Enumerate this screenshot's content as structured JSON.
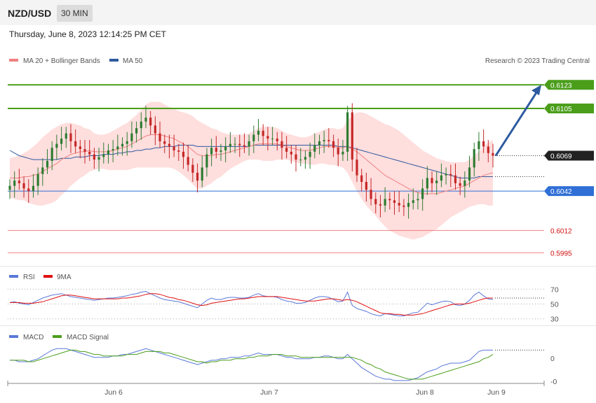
{
  "header": {
    "symbol": "NZD/USD",
    "timeframe": "30 MIN"
  },
  "timestamp": "Thursday, June 8, 2023 12:14:25 PM CET",
  "watermark": "Research © 2023 Trading Central",
  "colors": {
    "ma20": "#f08080",
    "ma50": "#2f5a9e",
    "bands": "#ffd6d6",
    "resistance": "#4a9e1a",
    "support": "#2f6fd6",
    "support_weak": "#f08080",
    "rsi": "#5a78d8",
    "rsi_ma": "#e01010",
    "macd": "#5a78d8",
    "macd_signal": "#4a9e1a",
    "bull": "#2e7d32",
    "bear": "#c62828"
  },
  "chart_data": [
    {
      "type": "candlestick",
      "title": "NZD/USD",
      "legend": [
        {
          "name": "MA 20 + Bollinger Bands"
        },
        {
          "name": "MA 50"
        }
      ],
      "ylim": [
        0.5985,
        0.6145
      ],
      "x_ticks": [
        "Jun 6",
        "Jun 7",
        "Jun 8",
        "Jun 9"
      ],
      "current_price": "0.6069",
      "levels": [
        {
          "value": 0.6123,
          "label": "0.6123",
          "kind": "resistance"
        },
        {
          "value": 0.6105,
          "label": "0.6105",
          "kind": "resistance"
        },
        {
          "value": 0.6042,
          "label": "0.6042",
          "kind": "support"
        },
        {
          "value": 0.6012,
          "label": "0.6012",
          "kind": "support_weak"
        },
        {
          "value": 0.5995,
          "label": "0.5995",
          "kind": "support_weak"
        }
      ],
      "projection": {
        "from": 0.6069,
        "to": 0.6123
      },
      "close": [
        0.6046,
        0.605,
        0.6048,
        0.6044,
        0.6042,
        0.6046,
        0.6055,
        0.606,
        0.6065,
        0.6075,
        0.6078,
        0.6082,
        0.6086,
        0.608,
        0.6076,
        0.6074,
        0.6072,
        0.607,
        0.6066,
        0.6068,
        0.607,
        0.6073,
        0.6074,
        0.6076,
        0.6078,
        0.608,
        0.6086,
        0.609,
        0.6095,
        0.6098,
        0.6092,
        0.6086,
        0.608,
        0.6078,
        0.6076,
        0.6073,
        0.6072,
        0.6068,
        0.6062,
        0.6056,
        0.605,
        0.606,
        0.607,
        0.6075,
        0.6072,
        0.6073,
        0.6076,
        0.6078,
        0.6078,
        0.6077,
        0.6076,
        0.608,
        0.6085,
        0.6088,
        0.6084,
        0.6082,
        0.6082,
        0.608,
        0.6075,
        0.6072,
        0.607,
        0.6066,
        0.6066,
        0.6068,
        0.6072,
        0.6077,
        0.608,
        0.6081,
        0.608,
        0.6075,
        0.607,
        0.6072,
        0.6102,
        0.6066,
        0.6054,
        0.6049,
        0.6043,
        0.6036,
        0.6032,
        0.6031,
        0.6036,
        0.6035,
        0.6033,
        0.6031,
        0.603,
        0.6033,
        0.6035,
        0.6036,
        0.6044,
        0.6052,
        0.6048,
        0.605,
        0.6054,
        0.6055,
        0.6054,
        0.6048,
        0.6046,
        0.605,
        0.606,
        0.6074,
        0.608,
        0.6076,
        0.6071,
        0.6069
      ],
      "ma20": [
        0.6052,
        0.6052,
        0.6052,
        0.6053,
        0.6053,
        0.6054,
        0.6055,
        0.6057,
        0.6059,
        0.6061,
        0.6063,
        0.6066,
        0.6068,
        0.607,
        0.6071,
        0.6072,
        0.6072,
        0.6073,
        0.6072,
        0.6072,
        0.6072,
        0.6072,
        0.6073,
        0.6074,
        0.6075,
        0.6076,
        0.6078,
        0.608,
        0.6082,
        0.6084,
        0.6085,
        0.6085,
        0.6085,
        0.6084,
        0.6083,
        0.6082,
        0.608,
        0.6078,
        0.6076,
        0.6073,
        0.607,
        0.6069,
        0.6069,
        0.6069,
        0.607,
        0.607,
        0.6071,
        0.6072,
        0.6073,
        0.6074,
        0.6075,
        0.6076,
        0.6077,
        0.6078,
        0.6078,
        0.6078,
        0.6078,
        0.6078,
        0.6077,
        0.6076,
        0.6075,
        0.6074,
        0.6073,
        0.6073,
        0.6073,
        0.6074,
        0.6075,
        0.6076,
        0.6076,
        0.6076,
        0.6075,
        0.6075,
        0.6076,
        0.6074,
        0.6072,
        0.6069,
        0.6066,
        0.6063,
        0.606,
        0.6057,
        0.6054,
        0.6052,
        0.605,
        0.6048,
        0.6046,
        0.6044,
        0.6042,
        0.6041,
        0.604,
        0.604,
        0.604,
        0.604,
        0.6041,
        0.6042,
        0.6043,
        0.6044,
        0.6045,
        0.6046,
        0.6048,
        0.605,
        0.6052,
        0.6054,
        0.6055,
        0.6056
      ],
      "ma50": [
        0.6073,
        0.6071,
        0.6069,
        0.6068,
        0.6067,
        0.6066,
        0.6066,
        0.6066,
        0.6066,
        0.6066,
        0.6066,
        0.6067,
        0.6067,
        0.6067,
        0.6068,
        0.6068,
        0.6068,
        0.6069,
        0.6069,
        0.6069,
        0.607,
        0.607,
        0.607,
        0.6071,
        0.6071,
        0.6072,
        0.6072,
        0.6073,
        0.6073,
        0.6074,
        0.6074,
        0.6075,
        0.6075,
        0.6076,
        0.6076,
        0.6076,
        0.6077,
        0.6077,
        0.6077,
        0.6077,
        0.6076,
        0.6076,
        0.6076,
        0.6076,
        0.6076,
        0.6076,
        0.6076,
        0.6076,
        0.6076,
        0.6076,
        0.6076,
        0.6076,
        0.6077,
        0.6077,
        0.6077,
        0.6077,
        0.6077,
        0.6077,
        0.6077,
        0.6077,
        0.6077,
        0.6077,
        0.6077,
        0.6077,
        0.6077,
        0.6077,
        0.6077,
        0.6077,
        0.6077,
        0.6077,
        0.6076,
        0.6076,
        0.6076,
        0.6075,
        0.6074,
        0.6073,
        0.6072,
        0.6071,
        0.607,
        0.6069,
        0.6068,
        0.6067,
        0.6066,
        0.6065,
        0.6064,
        0.6063,
        0.6062,
        0.6061,
        0.606,
        0.6059,
        0.6058,
        0.6057,
        0.6056,
        0.6055,
        0.6054,
        0.6053,
        0.6052,
        0.6052,
        0.6052,
        0.6052,
        0.6053,
        0.6053,
        0.6053,
        0.6053
      ],
      "band_width": [
        0.0015,
        0.0016,
        0.0017,
        0.0018,
        0.002,
        0.0022,
        0.0024,
        0.0026,
        0.0027,
        0.0028,
        0.0028,
        0.0027,
        0.0026,
        0.0024,
        0.0022,
        0.002,
        0.0018,
        0.0016,
        0.0014,
        0.0013,
        0.0013,
        0.0014,
        0.0015,
        0.0016,
        0.0017,
        0.0018,
        0.0019,
        0.002,
        0.0022,
        0.0024,
        0.0025,
        0.0025,
        0.0025,
        0.0024,
        0.0023,
        0.0023,
        0.0023,
        0.0024,
        0.0025,
        0.0026,
        0.0026,
        0.0025,
        0.0023,
        0.0021,
        0.0019,
        0.0017,
        0.0015,
        0.0013,
        0.0012,
        0.0011,
        0.001,
        0.001,
        0.0011,
        0.0012,
        0.0013,
        0.0013,
        0.0013,
        0.0012,
        0.0011,
        0.001,
        0.001,
        0.001,
        0.001,
        0.001,
        0.0011,
        0.0012,
        0.0012,
        0.0013,
        0.0014,
        0.0014,
        0.0014,
        0.0015,
        0.002,
        0.0025,
        0.003,
        0.0033,
        0.0035,
        0.0036,
        0.0037,
        0.0038,
        0.0039,
        0.004,
        0.004,
        0.004,
        0.0039,
        0.0038,
        0.0037,
        0.0035,
        0.0033,
        0.0031,
        0.0029,
        0.0027,
        0.0025,
        0.0023,
        0.0021,
        0.002,
        0.0019,
        0.0018,
        0.0018,
        0.0019,
        0.002,
        0.0022,
        0.0024,
        0.0025
      ]
    },
    {
      "type": "line",
      "legend": [
        {
          "name": "RSI"
        },
        {
          "name": "9MA"
        }
      ],
      "ylim": [
        25,
        75
      ],
      "y_ticks": [
        "70",
        "50",
        "30"
      ],
      "rsi": [
        52,
        53,
        51,
        50,
        49,
        52,
        55,
        58,
        60,
        62,
        63,
        64,
        62,
        60,
        59,
        58,
        57,
        56,
        55,
        56,
        57,
        58,
        58,
        59,
        60,
        61,
        63,
        64,
        66,
        67,
        64,
        61,
        58,
        56,
        55,
        54,
        53,
        51,
        49,
        47,
        45,
        50,
        55,
        58,
        56,
        56,
        58,
        59,
        59,
        58,
        58,
        59,
        62,
        64,
        61,
        60,
        60,
        59,
        56,
        54,
        53,
        51,
        51,
        52,
        55,
        58,
        60,
        60,
        59,
        56,
        53,
        54,
        66,
        48,
        44,
        42,
        40,
        37,
        35,
        34,
        37,
        36,
        35,
        34,
        34,
        36,
        38,
        39,
        45,
        51,
        49,
        51,
        53,
        54,
        53,
        49,
        48,
        50,
        55,
        62,
        66,
        61,
        57,
        56
      ],
      "rsi_ma": [
        52,
        52,
        52,
        51,
        51,
        51,
        52,
        53,
        55,
        57,
        59,
        61,
        62,
        62,
        61,
        60,
        59,
        58,
        57,
        57,
        57,
        57,
        57,
        57,
        58,
        58,
        59,
        60,
        61,
        63,
        64,
        64,
        63,
        61,
        59,
        58,
        56,
        55,
        53,
        51,
        49,
        48,
        49,
        51,
        52,
        53,
        54,
        55,
        56,
        57,
        57,
        58,
        59,
        60,
        60,
        60,
        60,
        60,
        59,
        58,
        57,
        56,
        55,
        54,
        54,
        54,
        55,
        56,
        57,
        57,
        56,
        55,
        56,
        55,
        53,
        50,
        47,
        44,
        41,
        38,
        37,
        37,
        36,
        36,
        35,
        35,
        35,
        36,
        37,
        39,
        41,
        43,
        45,
        47,
        49,
        50,
        50,
        50,
        51,
        53,
        55,
        57,
        58,
        58
      ]
    },
    {
      "type": "line",
      "legend": [
        {
          "name": "MACD"
        },
        {
          "name": "MACD Signal"
        }
      ],
      "ylim": [
        -0.0015,
        0.0012
      ],
      "y_ticks": [
        "0",
        "-0"
      ],
      "macd": [
        0,
        0,
        -0.0001,
        -0.0001,
        -0.0001,
        0,
        0.0001,
        0.0003,
        0.0005,
        0.0007,
        0.0008,
        0.0008,
        0.0008,
        0.0007,
        0.0006,
        0.0005,
        0.0004,
        0.0003,
        0.0002,
        0.0002,
        0.0002,
        0.0002,
        0.0003,
        0.0003,
        0.0004,
        0.0004,
        0.0005,
        0.0006,
        0.0007,
        0.0008,
        0.0007,
        0.0006,
        0.0005,
        0.0004,
        0.0003,
        0.0002,
        0.0001,
        0,
        -0.0001,
        -0.0002,
        -0.0003,
        -0.0002,
        -0.0001,
        0,
        0,
        0.0001,
        0.0001,
        0.0002,
        0.0002,
        0.0002,
        0.0003,
        0.0003,
        0.0004,
        0.0005,
        0.0004,
        0.0004,
        0.0004,
        0.0004,
        0.0003,
        0.0002,
        0.0002,
        0.0001,
        0.0001,
        0.0001,
        0.0001,
        0.0002,
        0.0002,
        0.0003,
        0.0003,
        0.0002,
        0.0001,
        0.0001,
        0.0004,
        0.0001,
        -0.0002,
        -0.0005,
        -0.0007,
        -0.0009,
        -0.0011,
        -0.0012,
        -0.0013,
        -0.0013,
        -0.0014,
        -0.0014,
        -0.0014,
        -0.0014,
        -0.0013,
        -0.0012,
        -0.001,
        -0.0008,
        -0.0007,
        -0.0006,
        -0.0004,
        -0.0003,
        -0.0002,
        -0.0002,
        -0.0002,
        -0.0001,
        0,
        0.0003,
        0.0006,
        0.0007,
        0.0007,
        0.0007
      ],
      "signal": [
        0,
        0,
        0,
        0,
        -0.0001,
        -0.0001,
        0,
        0.0001,
        0.0002,
        0.0003,
        0.0004,
        0.0005,
        0.0006,
        0.0007,
        0.0007,
        0.0006,
        0.0006,
        0.0005,
        0.0004,
        0.0004,
        0.0003,
        0.0003,
        0.0003,
        0.0003,
        0.0003,
        0.0004,
        0.0004,
        0.0004,
        0.0005,
        0.0006,
        0.0006,
        0.0006,
        0.0006,
        0.0005,
        0.0005,
        0.0004,
        0.0003,
        0.0002,
        0.0001,
        0,
        -0.0001,
        -0.0001,
        -0.0002,
        -0.0001,
        -0.0001,
        0,
        0,
        0,
        0.0001,
        0.0001,
        0.0001,
        0.0002,
        0.0002,
        0.0003,
        0.0003,
        0.0003,
        0.0004,
        0.0004,
        0.0004,
        0.0003,
        0.0003,
        0.0003,
        0.0002,
        0.0002,
        0.0002,
        0.0002,
        0.0002,
        0.0002,
        0.0002,
        0.0002,
        0.0002,
        0.0002,
        0.0002,
        0.0002,
        0.0001,
        0,
        -0.0002,
        -0.0003,
        -0.0005,
        -0.0006,
        -0.0008,
        -0.0009,
        -0.001,
        -0.0011,
        -0.0012,
        -0.0013,
        -0.0013,
        -0.0013,
        -0.0013,
        -0.0012,
        -0.0011,
        -0.001,
        -0.0009,
        -0.0008,
        -0.0007,
        -0.0006,
        -0.0005,
        -0.0004,
        -0.0003,
        -0.0002,
        -0.0001,
        0.0001,
        0.0002,
        0.0004
      ]
    }
  ]
}
